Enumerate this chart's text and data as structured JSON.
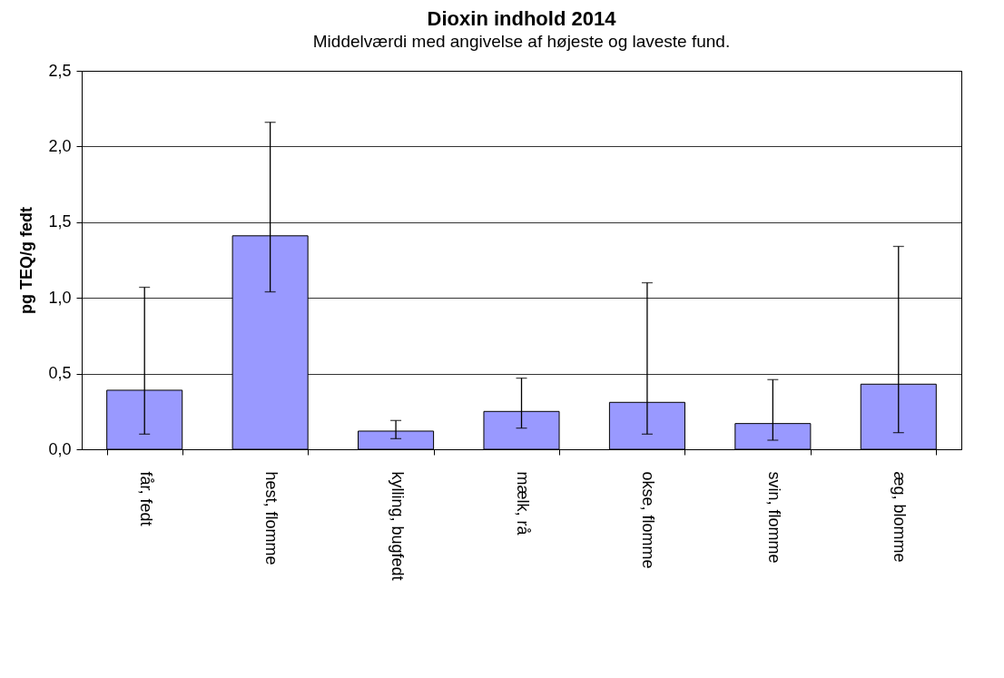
{
  "chart_data": {
    "type": "bar",
    "title": "Dioxin indhold 2014",
    "subtitle": "Middelværdi med angivelse af højeste og laveste fund.",
    "ylabel": "pg TEQ/g fedt",
    "categories": [
      "får, fedt",
      "hest, flomme",
      "kylling, bugfedt",
      "mælk, rå",
      "okse, flomme",
      "svin, flomme",
      "æg, blomme"
    ],
    "values": [
      0.39,
      1.41,
      0.12,
      0.25,
      0.31,
      0.17,
      0.43
    ],
    "errors": [
      [
        0.1,
        1.07
      ],
      [
        1.04,
        2.16
      ],
      [
        0.07,
        0.19
      ],
      [
        0.14,
        0.47
      ],
      [
        0.1,
        1.1
      ],
      [
        0.06,
        0.46
      ],
      [
        0.11,
        1.34
      ]
    ],
    "color": "#9999ff",
    "ylim": [
      0,
      2.5
    ],
    "yticks": [
      {
        "value": 0,
        "label": "0,0"
      },
      {
        "value": 0.5,
        "label": "0,5"
      },
      {
        "value": 1,
        "label": "1,0"
      },
      {
        "value": 1.5,
        "label": "1,5"
      },
      {
        "value": 2,
        "label": "2,0"
      },
      {
        "value": 2.5,
        "label": "2,5"
      }
    ],
    "grid": "y"
  }
}
